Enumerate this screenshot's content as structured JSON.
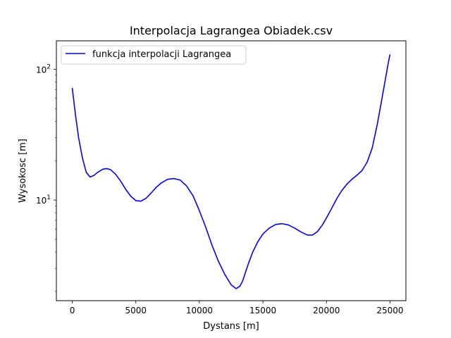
{
  "chart_data": {
    "type": "line",
    "title": "Interpolacja Lagrangea Obiadek.csv",
    "xlabel": "Dystans [m]",
    "ylabel": "Wysokosc [m]",
    "x_scale": "linear",
    "y_scale": "log",
    "xlim": [
      -1250,
      26250
    ],
    "ylim": [
      1.7,
      165
    ],
    "x_ticks": [
      {
        "value": 0,
        "label": "0"
      },
      {
        "value": 5000,
        "label": "5000"
      },
      {
        "value": 10000,
        "label": "10000"
      },
      {
        "value": 15000,
        "label": "15000"
      },
      {
        "value": 20000,
        "label": "20000"
      },
      {
        "value": 25000,
        "label": "25000"
      }
    ],
    "y_ticks": [
      {
        "value": 10,
        "base": "10",
        "exp": "1"
      },
      {
        "value": 100,
        "base": "10",
        "exp": "2"
      }
    ],
    "grid": false,
    "legend": {
      "position": "top-left"
    },
    "series": [
      {
        "name": "funkcja interpolacji Lagrangea",
        "color": "#0000ff",
        "x": [
          0,
          250,
          500,
          800,
          1100,
          1400,
          1700,
          2000,
          2400,
          2700,
          3000,
          3400,
          3800,
          4200,
          4600,
          5000,
          5400,
          5800,
          6200,
          6600,
          7000,
          7500,
          8000,
          8500,
          9000,
          9500,
          10000,
          10500,
          11000,
          11500,
          12000,
          12500,
          12900,
          13200,
          13400,
          13600,
          13900,
          14200,
          14600,
          15000,
          15500,
          16000,
          16500,
          17000,
          17500,
          18000,
          18500,
          18900,
          19300,
          19700,
          20000,
          20400,
          20800,
          21200,
          21600,
          22000,
          22400,
          22800,
          23200,
          23600,
          24000,
          24300,
          24600,
          24850,
          25000
        ],
        "y": [
          72,
          45,
          30,
          21,
          16.3,
          15.0,
          15.4,
          16.3,
          17.2,
          17.4,
          17.1,
          15.8,
          14.0,
          12.1,
          10.7,
          9.9,
          9.8,
          10.3,
          11.3,
          12.5,
          13.5,
          14.4,
          14.6,
          14.2,
          12.8,
          10.8,
          8.3,
          6.2,
          4.5,
          3.4,
          2.7,
          2.25,
          2.1,
          2.2,
          2.4,
          2.75,
          3.35,
          4.0,
          4.8,
          5.5,
          6.1,
          6.5,
          6.6,
          6.45,
          6.1,
          5.7,
          5.4,
          5.4,
          5.75,
          6.5,
          7.3,
          8.6,
          10.2,
          11.8,
          13.2,
          14.4,
          15.5,
          16.8,
          19.5,
          25,
          38,
          55,
          80,
          110,
          130
        ]
      }
    ]
  }
}
